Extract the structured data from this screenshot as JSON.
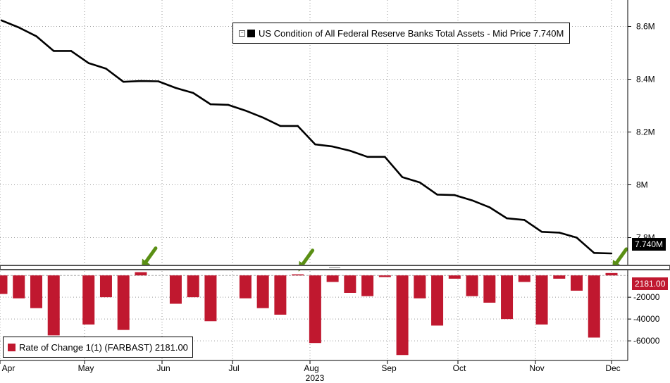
{
  "colors": {
    "line": "#000000",
    "bar": "#c0182f",
    "arrow": "#5a8f14",
    "divider": "#555555"
  },
  "upper_legend": {
    "label": "US Condition of All Federal Reserve Banks Total Assets - Mid Price 7.740M",
    "last_value": "7.740M"
  },
  "lower_legend": {
    "label": "Rate of Change 1(1) (FARBAST) 2181.00",
    "last_value": "2181.00"
  },
  "chart_data": [
    {
      "type": "line",
      "series": [
        {
          "values": [
            8.623,
            8.596,
            8.563,
            8.507,
            8.507,
            8.461,
            8.44,
            8.39,
            8.393,
            8.392,
            8.367,
            8.348,
            8.305,
            8.303,
            8.281,
            8.255,
            8.223,
            8.223,
            8.153,
            8.145,
            8.129,
            8.106,
            8.106,
            8.029,
            8.009,
            7.963,
            7.961,
            7.941,
            7.915,
            7.873,
            7.867,
            7.822,
            7.819,
            7.8,
            7.742,
            7.74
          ]
        }
      ],
      "ylim": [
        7.7,
        8.7
      ],
      "yticks": [
        7.8,
        8.0,
        8.2,
        8.4,
        8.6
      ],
      "ytick_labels": [
        "7.8M",
        "8M",
        "8.2M",
        "8.4M",
        "8.6M"
      ],
      "grid": true
    },
    {
      "type": "bar",
      "series": [
        {
          "values": [
            -17000,
            -21000,
            -30000,
            -55000,
            0,
            -45000,
            -20000,
            -50000,
            3000,
            0,
            -26000,
            -20000,
            -42000,
            0,
            -21000,
            -30000,
            -36000,
            1000,
            -62000,
            -6000,
            -16000,
            -19000,
            -1500,
            -73000,
            -21000,
            -46000,
            -3000,
            -19000,
            -25000,
            -40000,
            -6000,
            -45000,
            -3000,
            -14000,
            -57000,
            2181
          ]
        }
      ],
      "ylim": [
        -78000,
        4000
      ],
      "yticks": [
        -20000,
        -40000,
        -60000
      ],
      "ytick_labels": [
        "-20000",
        "-40000",
        "-60000"
      ],
      "highlighted_indices": [
        8,
        17,
        35
      ],
      "grid": true
    }
  ],
  "x_axis": {
    "months": [
      "Apr",
      "May",
      "Jun",
      "Jul",
      "Aug",
      "Sep",
      "Oct",
      "Nov",
      "Dec"
    ],
    "year": "2023"
  }
}
